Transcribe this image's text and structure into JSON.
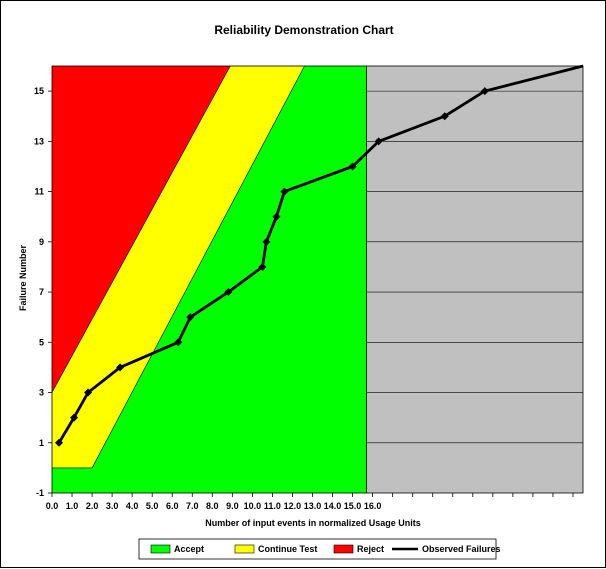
{
  "chart_data": {
    "type": "line",
    "title": "Reliability Demonstration Chart",
    "xlabel": "Number of input events in normalized Usage Units",
    "ylabel": "Failure Number",
    "xlim": [
      0,
      26.5
    ],
    "ylim": [
      -1,
      16
    ],
    "x_ticks": [
      "0.0",
      "1.0",
      "2.0",
      "3.0",
      "4.0",
      "5.0",
      "6.0",
      "7.0",
      "8.0",
      "9.0",
      "10.0",
      "11.0",
      "12.0",
      "13.0",
      "14.0",
      "15.0",
      "16.0"
    ],
    "y_ticks": [
      "-1",
      "1",
      "3",
      "5",
      "7",
      "9",
      "11",
      "13",
      "15"
    ],
    "regions": {
      "reject": {
        "name": "Reject",
        "color": "#ff0000",
        "boundary": [
          [
            0,
            3
          ],
          [
            8.9,
            16
          ]
        ]
      },
      "continue": {
        "name": "Continue Test",
        "color": "#ffff00",
        "boundary": [
          [
            0,
            0
          ],
          [
            2.0,
            0
          ],
          [
            12.6,
            16
          ]
        ]
      },
      "accept": {
        "name": "Accept",
        "color": "#00ff00",
        "x_end": 15.7
      },
      "beyond_color": "#c0c0c0"
    },
    "series": [
      {
        "name": "Observed Failures",
        "color": "#000000",
        "points": [
          [
            0.35,
            1
          ],
          [
            1.1,
            2
          ],
          [
            1.8,
            3
          ],
          [
            3.4,
            4
          ],
          [
            6.3,
            5
          ],
          [
            6.9,
            6
          ],
          [
            8.8,
            7
          ],
          [
            10.5,
            8
          ],
          [
            10.7,
            9
          ],
          [
            11.2,
            10
          ],
          [
            11.6,
            11
          ],
          [
            15.0,
            12
          ],
          [
            16.3,
            13
          ],
          [
            19.6,
            14
          ],
          [
            21.6,
            15
          ],
          [
            26.5,
            16
          ]
        ]
      }
    ],
    "legend": {
      "placement": "bottom",
      "entries": [
        "Accept",
        "Continue Test",
        "Reject",
        "Observed Failures"
      ]
    },
    "grid": "horizontal lines in grey region"
  }
}
